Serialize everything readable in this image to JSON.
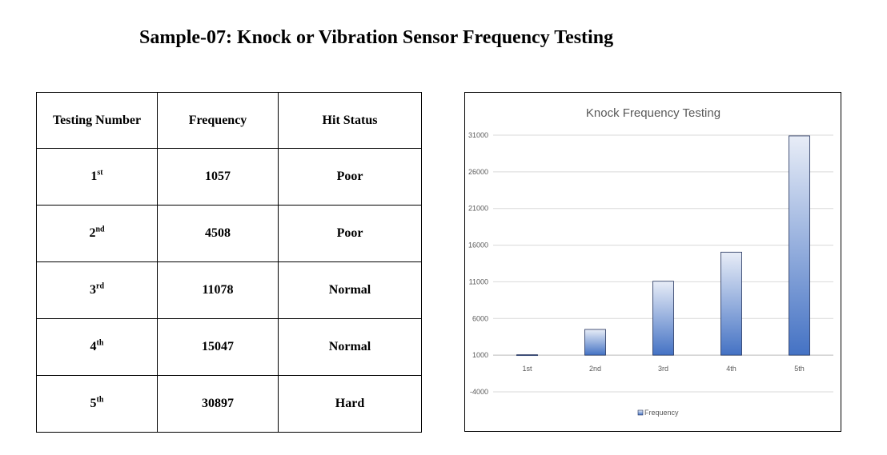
{
  "title": "Sample-07: Knock or Vibration Sensor Frequency Testing",
  "table": {
    "headers": [
      "Testing Number",
      "Frequency",
      "Hit Status"
    ],
    "rows": [
      {
        "num": "1",
        "suffix": "st",
        "frequency": "1057",
        "status": "Poor"
      },
      {
        "num": "2",
        "suffix": "nd",
        "frequency": "4508",
        "status": "Poor"
      },
      {
        "num": "3",
        "suffix": "rd",
        "frequency": "11078",
        "status": "Normal"
      },
      {
        "num": "4",
        "suffix": "th",
        "frequency": "15047",
        "status": "Normal"
      },
      {
        "num": "5",
        "suffix": "th",
        "frequency": "30897",
        "status": "Hard"
      }
    ]
  },
  "chart_data": {
    "type": "bar",
    "title": "Knock Frequency Testing",
    "categories": [
      "1st",
      "2nd",
      "3rd",
      "4th",
      "5th"
    ],
    "series": [
      {
        "name": "Frequency",
        "values": [
          1057,
          4508,
          11078,
          15047,
          30897
        ]
      }
    ],
    "yticks": [
      31000,
      26000,
      21000,
      16000,
      11000,
      6000,
      1000,
      -4000
    ],
    "ylim": [
      -4000,
      31000
    ],
    "baseline": 1000,
    "grid": true,
    "legend": "bottom",
    "colors": {
      "bar_light": "#e8edf7",
      "bar_dark": "#4472c4",
      "grid": "#d9d9d9",
      "axis_text": "#595959"
    }
  }
}
